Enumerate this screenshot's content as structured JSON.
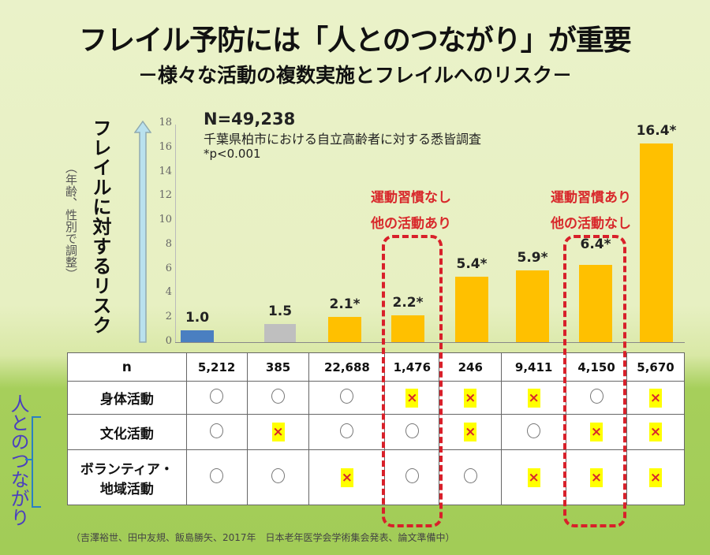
{
  "title": "フレイル予防には「人とのつながり」が重要",
  "subtitle": "－様々な活動の複数実施とフレイルへのリスク－",
  "ylabel": "フレイルに対するリスク",
  "ylabel_note": "（年齢、性別で調整）",
  "n_total": "N=49,238",
  "survey": "千葉県柏市における自立高齢者に対する悉皆調査",
  "pnote": "*p<0.001",
  "annotations": [
    {
      "line1": "運動習慣なし",
      "line2": "他の活動あり"
    },
    {
      "line1": "運動習慣あり",
      "line2": "他の活動なし"
    }
  ],
  "side_label": "人とのつながり",
  "citation": "（吉澤裕世、田中友規、飯島勝矢、2017年　日本老年医学会学術集会発表、論文準備中）",
  "colors": {
    "reference": "#4a7fc1",
    "gray": "#bfbfbf",
    "highlight": "#ffc000",
    "dash": "#d8202a"
  },
  "chart_data": {
    "type": "bar",
    "title": "フレイル予防には「人とのつながり」が重要",
    "ylabel": "フレイルに対するリスク（年齢、性別で調整）",
    "ylim": [
      0,
      18
    ],
    "yticks": [
      "0",
      "2",
      "4",
      "6",
      "8",
      "10",
      "12",
      "14",
      "16",
      "18"
    ],
    "values": [
      1.0,
      1.5,
      2.1,
      2.2,
      5.4,
      5.9,
      6.4,
      16.4
    ],
    "labels": [
      "1.0",
      "1.5",
      "2.1*",
      "2.2*",
      "5.4*",
      "5.9*",
      "6.4*",
      "16.4*"
    ],
    "bar_colors": [
      "reference",
      "gray",
      "highlight",
      "highlight",
      "highlight",
      "highlight",
      "highlight",
      "highlight"
    ]
  },
  "table": {
    "row_headers": [
      "n",
      "身体活動",
      "文化活動",
      "ボランティア・地域活動"
    ],
    "volunteer_line1": "ボランティア・",
    "volunteer_line2": "地域活動",
    "n_values": [
      "5,212",
      "385",
      "22,688",
      "1,476",
      "246",
      "9,411",
      "4,150",
      "5,670"
    ],
    "physical": [
      "○",
      "○",
      "○",
      "×",
      "×",
      "×",
      "○",
      "×"
    ],
    "cultural": [
      "○",
      "×",
      "○",
      "○",
      "×",
      "○",
      "×",
      "×"
    ],
    "volunteer": [
      "○",
      "○",
      "×",
      "○",
      "○",
      "×",
      "×",
      "×"
    ]
  }
}
